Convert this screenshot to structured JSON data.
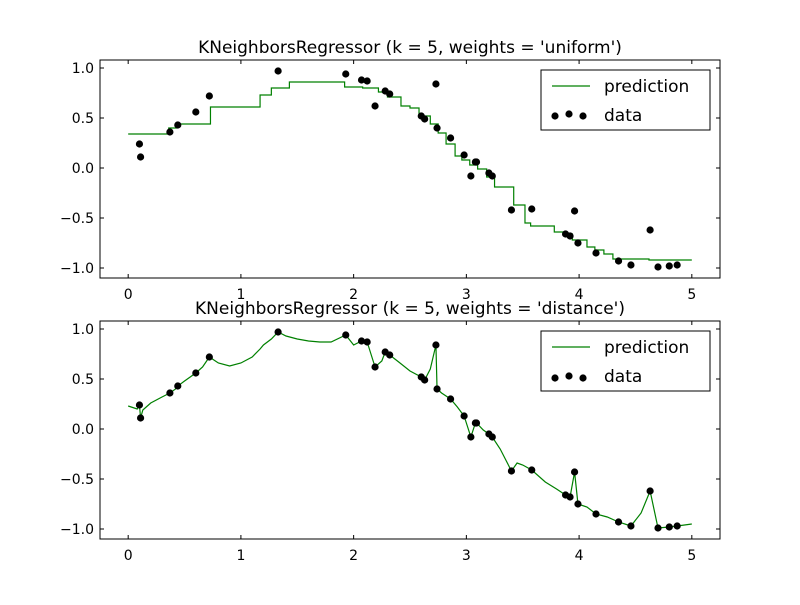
{
  "colors": {
    "background": "#ffffff",
    "prediction_line": "#008000",
    "data_points": "#000000",
    "axes": "#000000"
  },
  "chart_data": [
    {
      "type": "line",
      "title": "KNeighborsRegressor (k = 5, weights = 'uniform')",
      "xlabel": "",
      "ylabel": "",
      "xlim": [
        -0.25,
        5.25
      ],
      "ylim": [
        -1.1,
        1.08
      ],
      "x_ticks": [
        0,
        1,
        2,
        3,
        4,
        5
      ],
      "x_tick_labels": [
        "0",
        "1",
        "2",
        "3",
        "4",
        "5"
      ],
      "y_ticks": [
        -1.0,
        -0.5,
        0.0,
        0.5,
        1.0
      ],
      "y_tick_labels": [
        "−1.0",
        "−0.5",
        "0.0",
        "0.5",
        "1.0"
      ],
      "grid": false,
      "legend": {
        "position": "top-right",
        "entries": [
          "prediction",
          "data"
        ]
      },
      "series": [
        {
          "name": "prediction",
          "kind": "line",
          "color": "#008000",
          "x": [
            0.0,
            0.36,
            0.36,
            0.43,
            0.43,
            0.73,
            0.73,
            1.17,
            1.17,
            1.27,
            1.27,
            1.43,
            1.43,
            1.63,
            1.63,
            1.92,
            1.92,
            2.08,
            2.08,
            2.22,
            2.22,
            2.3,
            2.3,
            2.42,
            2.42,
            2.5,
            2.5,
            2.58,
            2.58,
            2.68,
            2.68,
            2.75,
            2.75,
            2.82,
            2.82,
            2.9,
            2.9,
            2.96,
            2.96,
            3.03,
            3.03,
            3.1,
            3.1,
            3.18,
            3.18,
            3.25,
            3.25,
            3.32,
            3.32,
            3.42,
            3.42,
            3.52,
            3.52,
            3.57,
            3.57,
            3.78,
            3.78,
            3.86,
            3.86,
            3.94,
            3.94,
            4.07,
            4.07,
            4.14,
            4.14,
            4.22,
            4.22,
            4.3,
            4.3,
            4.48,
            4.48,
            4.62,
            4.62,
            5.0
          ],
          "y": [
            0.34,
            0.34,
            0.4,
            0.4,
            0.44,
            0.44,
            0.61,
            0.61,
            0.73,
            0.73,
            0.8,
            0.8,
            0.86,
            0.86,
            0.86,
            0.86,
            0.81,
            0.81,
            0.8,
            0.8,
            0.76,
            0.76,
            0.71,
            0.71,
            0.62,
            0.62,
            0.6,
            0.6,
            0.52,
            0.52,
            0.44,
            0.44,
            0.35,
            0.35,
            0.24,
            0.24,
            0.12,
            0.12,
            0.08,
            0.08,
            0.03,
            0.03,
            -0.01,
            -0.01,
            -0.09,
            -0.09,
            -0.19,
            -0.19,
            -0.19,
            -0.19,
            -0.37,
            -0.37,
            -0.55,
            -0.55,
            -0.58,
            -0.58,
            -0.64,
            -0.64,
            -0.66,
            -0.66,
            -0.72,
            -0.72,
            -0.79,
            -0.79,
            -0.82,
            -0.82,
            -0.86,
            -0.86,
            -0.91,
            -0.91,
            -0.91,
            -0.91,
            -0.92,
            -0.92
          ]
        },
        {
          "name": "data",
          "kind": "scatter",
          "color": "#000000",
          "x": [
            0.1,
            0.11,
            0.37,
            0.44,
            0.6,
            0.72,
            1.33,
            1.93,
            2.07,
            2.12,
            2.19,
            2.28,
            2.32,
            2.6,
            2.63,
            2.73,
            2.74,
            2.86,
            2.98,
            3.04,
            3.08,
            3.09,
            3.2,
            3.23,
            3.4,
            3.58,
            3.88,
            3.92,
            3.96,
            3.99,
            4.15,
            4.35,
            4.46,
            4.63,
            4.7,
            4.8,
            4.87
          ],
          "y": [
            0.24,
            0.11,
            0.36,
            0.43,
            0.56,
            0.72,
            0.97,
            0.94,
            0.88,
            0.87,
            0.62,
            0.77,
            0.74,
            0.52,
            0.49,
            0.84,
            0.4,
            0.3,
            0.13,
            -0.08,
            0.06,
            0.06,
            -0.05,
            -0.08,
            -0.42,
            -0.41,
            -0.66,
            -0.68,
            -0.43,
            -0.75,
            -0.85,
            -0.93,
            -0.97,
            -0.62,
            -0.99,
            -0.98,
            -0.97
          ]
        }
      ]
    },
    {
      "type": "line",
      "title": "KNeighborsRegressor (k = 5, weights = 'distance')",
      "xlabel": "",
      "ylabel": "",
      "xlim": [
        -0.25,
        5.25
      ],
      "ylim": [
        -1.1,
        1.08
      ],
      "x_ticks": [
        0,
        1,
        2,
        3,
        4,
        5
      ],
      "x_tick_labels": [
        "0",
        "1",
        "2",
        "3",
        "4",
        "5"
      ],
      "y_ticks": [
        -1.0,
        -0.5,
        0.0,
        0.5,
        1.0
      ],
      "y_tick_labels": [
        "−1.0",
        "−0.5",
        "0.0",
        "0.5",
        "1.0"
      ],
      "grid": false,
      "legend": {
        "position": "top-right",
        "entries": [
          "prediction",
          "data"
        ]
      },
      "series": [
        {
          "name": "prediction",
          "kind": "line",
          "color": "#008000",
          "x": [
            0.0,
            0.08,
            0.1,
            0.11,
            0.13,
            0.2,
            0.3,
            0.37,
            0.42,
            0.44,
            0.5,
            0.6,
            0.66,
            0.72,
            0.8,
            0.9,
            1.0,
            1.1,
            1.17,
            1.2,
            1.27,
            1.33,
            1.4,
            1.5,
            1.6,
            1.7,
            1.8,
            1.93,
            2.0,
            2.07,
            2.12,
            2.19,
            2.25,
            2.28,
            2.32,
            2.4,
            2.5,
            2.6,
            2.63,
            2.68,
            2.73,
            2.74,
            2.78,
            2.86,
            2.92,
            2.98,
            3.04,
            3.08,
            3.09,
            3.15,
            3.2,
            3.23,
            3.3,
            3.4,
            3.45,
            3.5,
            3.58,
            3.7,
            3.8,
            3.88,
            3.92,
            3.96,
            3.99,
            4.07,
            4.15,
            4.25,
            4.35,
            4.46,
            4.55,
            4.63,
            4.7,
            4.8,
            4.87,
            5.0
          ],
          "y": [
            0.23,
            0.2,
            0.24,
            0.11,
            0.19,
            0.26,
            0.32,
            0.36,
            0.4,
            0.43,
            0.48,
            0.56,
            0.62,
            0.72,
            0.66,
            0.63,
            0.66,
            0.72,
            0.8,
            0.84,
            0.9,
            0.97,
            0.93,
            0.9,
            0.88,
            0.87,
            0.87,
            0.94,
            0.84,
            0.88,
            0.87,
            0.62,
            0.68,
            0.77,
            0.74,
            0.67,
            0.58,
            0.52,
            0.49,
            0.6,
            0.84,
            0.4,
            0.36,
            0.3,
            0.22,
            0.13,
            -0.08,
            0.06,
            0.06,
            -0.01,
            -0.05,
            -0.08,
            -0.2,
            -0.42,
            -0.34,
            -0.36,
            -0.41,
            -0.53,
            -0.6,
            -0.66,
            -0.68,
            -0.43,
            -0.75,
            -0.78,
            -0.85,
            -0.88,
            -0.93,
            -0.97,
            -0.84,
            -0.62,
            -0.99,
            -0.98,
            -0.97,
            -0.95
          ]
        },
        {
          "name": "data",
          "kind": "scatter",
          "color": "#000000",
          "x": [
            0.1,
            0.11,
            0.37,
            0.44,
            0.6,
            0.72,
            1.33,
            1.93,
            2.07,
            2.12,
            2.19,
            2.28,
            2.32,
            2.6,
            2.63,
            2.73,
            2.74,
            2.86,
            2.98,
            3.04,
            3.08,
            3.09,
            3.2,
            3.23,
            3.4,
            3.58,
            3.88,
            3.92,
            3.96,
            3.99,
            4.15,
            4.35,
            4.46,
            4.63,
            4.7,
            4.8,
            4.87
          ],
          "y": [
            0.24,
            0.11,
            0.36,
            0.43,
            0.56,
            0.72,
            0.97,
            0.94,
            0.88,
            0.87,
            0.62,
            0.77,
            0.74,
            0.52,
            0.49,
            0.84,
            0.4,
            0.3,
            0.13,
            -0.08,
            0.06,
            0.06,
            -0.05,
            -0.08,
            -0.42,
            -0.41,
            -0.66,
            -0.68,
            -0.43,
            -0.75,
            -0.85,
            -0.93,
            -0.97,
            -0.62,
            -0.99,
            -0.98,
            -0.97
          ]
        }
      ]
    }
  ]
}
